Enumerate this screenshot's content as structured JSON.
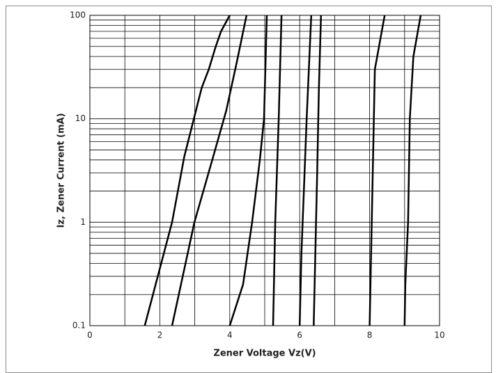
{
  "chart_data": {
    "type": "line",
    "xlabel": "Zener Voltage  Vz(V)",
    "ylabel": "Iz, Zener Current (mA)",
    "xlim": [
      0,
      10
    ],
    "xticks": [
      0,
      2,
      4,
      6,
      8,
      10
    ],
    "ylim": [
      0.1,
      100
    ],
    "yticks": [
      0.1,
      1,
      10,
      100
    ],
    "log_scale_y": true,
    "grid": true,
    "series": [
      {
        "color": "#000000",
        "x": [
          1.57,
          2.35,
          2.7,
          3.2,
          3.4,
          3.6,
          3.75,
          4.0
        ],
        "values": [
          0.1,
          1,
          4.3,
          20,
          30,
          50,
          70,
          100
        ]
      },
      {
        "color": "#000000",
        "x": [
          2.35,
          2.99,
          3.5,
          3.9,
          4.2,
          4.48
        ],
        "values": [
          0.1,
          1,
          4,
          12,
          35,
          100
        ]
      },
      {
        "color": "#000000",
        "x": [
          4.0,
          4.38,
          4.64,
          4.86,
          4.98,
          5.06
        ],
        "values": [
          0.1,
          0.25,
          1,
          4,
          10,
          100
        ]
      },
      {
        "color": "#000000",
        "x": [
          5.24,
          5.3,
          5.4,
          5.48
        ],
        "values": [
          0.1,
          1,
          10,
          100
        ]
      },
      {
        "color": "#000000",
        "x": [
          6.0,
          6.05,
          6.2,
          6.33
        ],
        "values": [
          0.1,
          0.5,
          10,
          100
        ]
      },
      {
        "color": "#000000",
        "x": [
          6.4,
          6.5,
          6.55,
          6.61
        ],
        "values": [
          0.1,
          3,
          20,
          100
        ]
      },
      {
        "color": "#000000",
        "x": [
          8.0,
          8.15,
          8.43
        ],
        "values": [
          0.1,
          30,
          100
        ]
      },
      {
        "color": "#000000",
        "x": [
          9.0,
          9.02,
          9.1,
          9.15,
          9.25,
          9.46
        ],
        "values": [
          0.1,
          0.25,
          1,
          10,
          40,
          100
        ]
      }
    ]
  }
}
